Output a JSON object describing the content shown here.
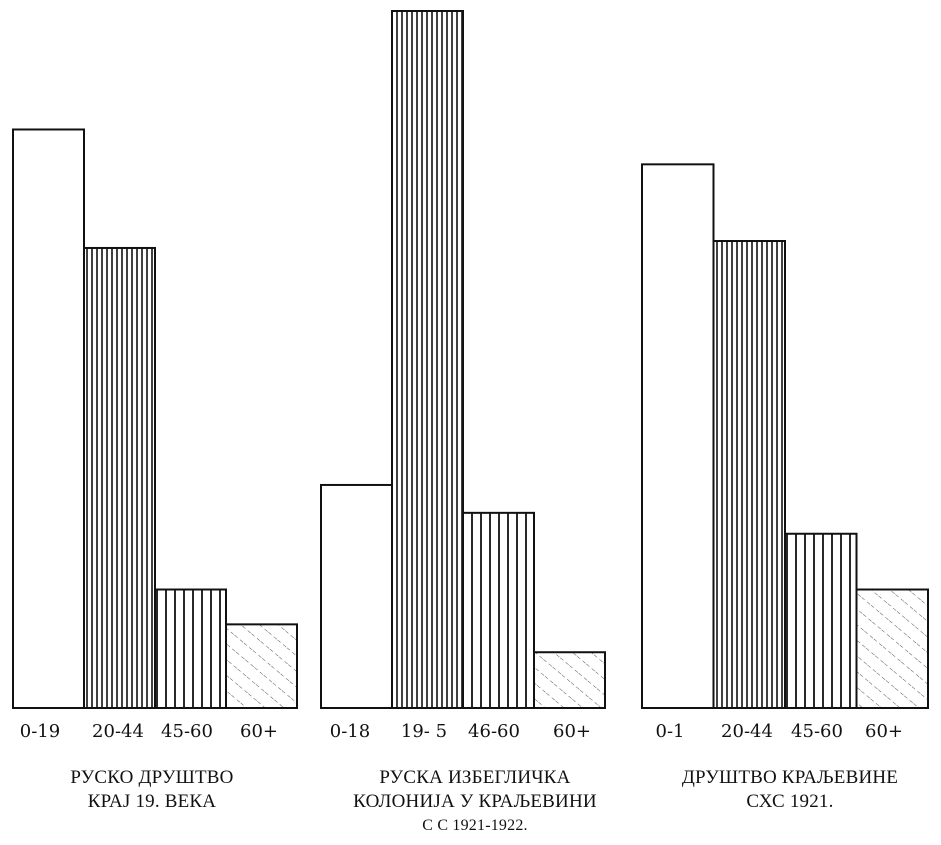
{
  "chart_data": [
    {
      "type": "bar",
      "categories": [
        "0-19",
        "20-44",
        "45-60",
        "60+"
      ],
      "values": [
        83,
        66,
        17,
        12
      ],
      "patterns": [
        "blank",
        "vertical-dense",
        "vertical",
        "hatch"
      ],
      "title_lines": [
        "РУСКО ДРУШТВО",
        "КРАЈ 19. ВЕКА"
      ]
    },
    {
      "type": "bar",
      "categories": [
        "0-18",
        "19- 5",
        "46-60",
        "60+"
      ],
      "values": [
        32,
        100,
        28,
        8
      ],
      "patterns": [
        "blank",
        "vertical-dense",
        "vertical",
        "hatch"
      ],
      "title_lines": [
        "РУСКА ИЗБЕГЛИЧКА",
        "КОЛОНИЈА У КРАЉЕВИНИ",
        "С  С 1921-1922."
      ]
    },
    {
      "type": "bar",
      "categories": [
        "0-1",
        "20-44",
        "45-60",
        "60+"
      ],
      "values": [
        78,
        67,
        25,
        17
      ],
      "patterns": [
        "blank",
        "vertical-dense",
        "vertical",
        "hatch"
      ],
      "title_lines": [
        "ДРУШТВО КРАЉЕВИНЕ",
        "СХС 1921."
      ]
    }
  ]
}
